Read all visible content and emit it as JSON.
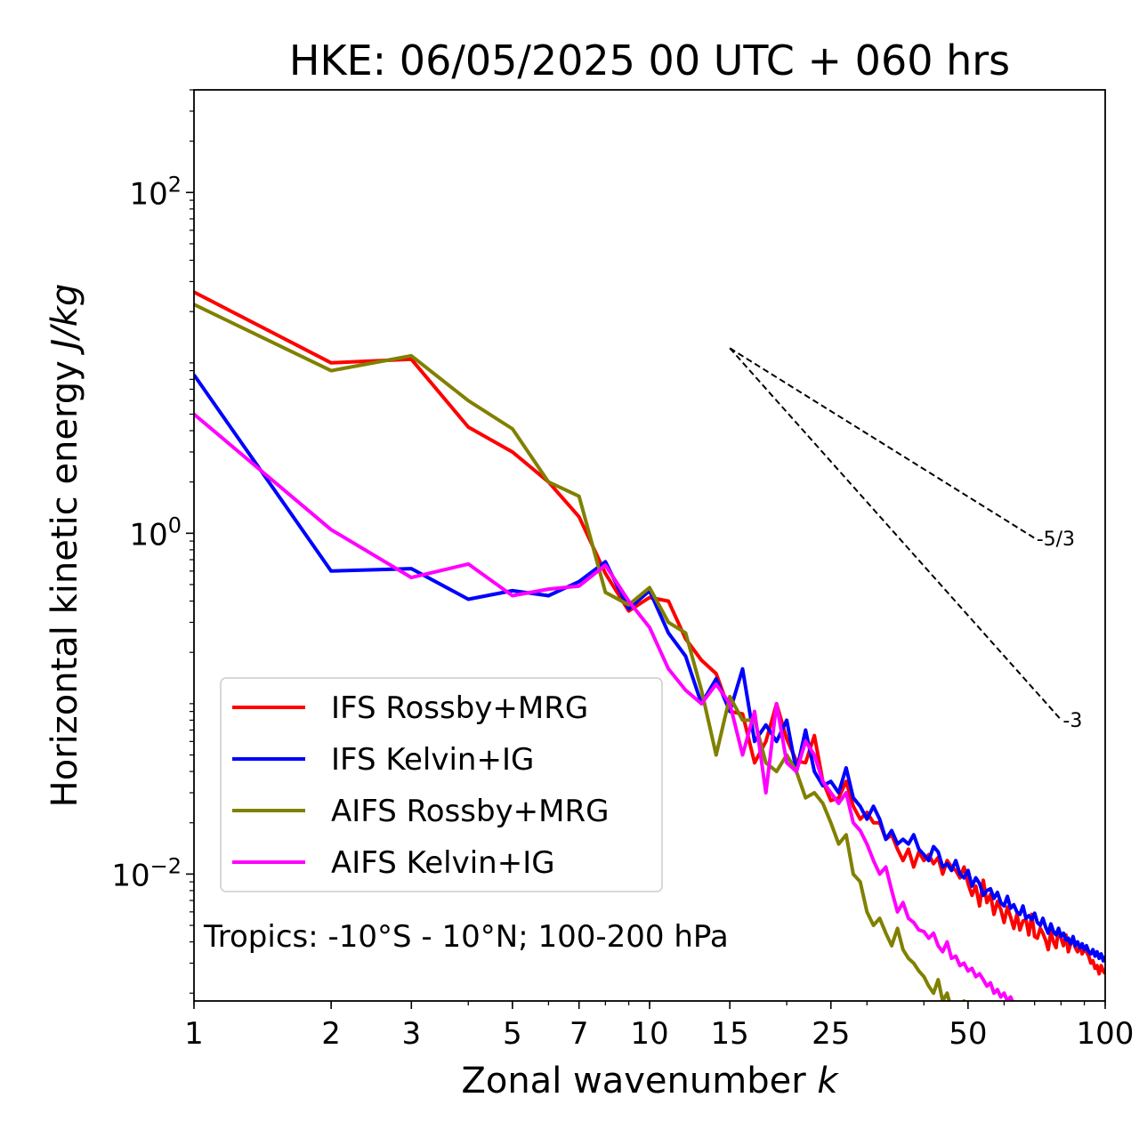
{
  "chart_data": {
    "type": "line",
    "title": "HKE: 06/05/2025 00 UTC + 060 hrs",
    "xlabel": "Zonal wavenumber",
    "xlabel_symbol": "k",
    "ylabel": "Horizontal kinetic energy",
    "ylabel_unit": "J/kg",
    "xscale": "log",
    "yscale": "log",
    "xlim": [
      1,
      100
    ],
    "ylim": [
      0.0018,
      400
    ],
    "xticks": [
      1,
      2,
      3,
      5,
      7,
      10,
      15,
      25,
      50,
      100
    ],
    "xtick_labels": [
      "1",
      "2",
      "3",
      "5",
      "7",
      "10",
      "15",
      "25",
      "50",
      "100"
    ],
    "yticks": [
      {
        "value": 100,
        "base": "10",
        "exp": "2"
      },
      {
        "value": 1,
        "base": "10",
        "exp": "0"
      },
      {
        "value": 0.01,
        "base": "10",
        "exp": "−2"
      }
    ],
    "annotation": "Tropics: -10°S - 10°N; 100-200 hPa",
    "legend_position": "lower-left",
    "reference_lines": [
      {
        "label": "-5/3",
        "slope": -1.6667,
        "x": [
          15,
          70
        ],
        "y_start": 12.2
      },
      {
        "label": "-3",
        "slope": -3,
        "x": [
          15,
          80
        ],
        "y_start": 12.2
      }
    ],
    "series": [
      {
        "name": "IFS Rossby+MRG",
        "color": "#ff0000",
        "x": [
          1,
          2,
          3,
          4,
          5,
          6,
          7,
          8,
          9,
          10,
          11,
          12,
          13,
          14,
          15,
          16,
          17,
          18,
          19,
          20,
          21,
          22,
          23,
          24,
          25,
          26,
          27,
          28,
          29,
          30,
          31,
          32,
          33,
          34,
          35,
          36,
          37,
          38,
          39,
          40,
          41,
          42,
          43,
          44,
          45,
          46,
          47,
          48,
          49,
          50,
          51,
          52,
          53,
          54,
          55,
          56,
          57,
          58,
          59,
          60,
          61,
          62,
          63,
          64,
          65,
          66,
          67,
          68,
          69,
          70,
          71,
          72,
          73,
          74,
          75,
          76,
          77,
          78,
          79,
          80,
          81,
          82,
          83,
          84,
          85,
          86,
          87,
          88,
          89,
          90,
          91,
          92,
          93,
          94,
          95,
          96,
          97,
          98,
          99,
          100
        ],
        "y": [
          26,
          10,
          10.5,
          4.2,
          3,
          2,
          1.25,
          0.58,
          0.35,
          0.42,
          0.4,
          0.24,
          0.18,
          0.15,
          0.09,
          0.087,
          0.045,
          0.06,
          0.1,
          0.062,
          0.046,
          0.045,
          0.065,
          0.035,
          0.027,
          0.028,
          0.035,
          0.025,
          0.021,
          0.023,
          0.02,
          0.02,
          0.016,
          0.017,
          0.014,
          0.012,
          0.014,
          0.011,
          0.0135,
          0.012,
          0.013,
          0.0115,
          0.0125,
          0.01,
          0.012,
          0.011,
          0.0105,
          0.0095,
          0.011,
          0.0088,
          0.0075,
          0.0085,
          0.0065,
          0.0092,
          0.0068,
          0.0076,
          0.0058,
          0.0069,
          0.0062,
          0.0052,
          0.0064,
          0.0056,
          0.0048,
          0.0058,
          0.0047,
          0.0053,
          0.0054,
          0.0044,
          0.0058,
          0.0043,
          0.0042,
          0.0048,
          0.0045,
          0.0041,
          0.0036,
          0.0046,
          0.004,
          0.0037,
          0.0048,
          0.0042,
          0.0038,
          0.0044,
          0.0035,
          0.0039,
          0.0041,
          0.0037,
          0.0035,
          0.0038,
          0.0034,
          0.0036,
          0.0035,
          0.0033,
          0.003,
          0.0031,
          0.0028,
          0.0029,
          0.0026,
          0.0029,
          0.0027,
          0.0026
        ]
      },
      {
        "name": "IFS Kelvin+IG",
        "color": "#0000ff",
        "x": [
          1,
          2,
          3,
          4,
          5,
          6,
          7,
          8,
          9,
          10,
          11,
          12,
          13,
          14,
          15,
          16,
          17,
          18,
          19,
          20,
          21,
          22,
          23,
          24,
          25,
          26,
          27,
          28,
          29,
          30,
          31,
          32,
          33,
          34,
          35,
          36,
          37,
          38,
          39,
          40,
          41,
          42,
          43,
          44,
          45,
          46,
          47,
          48,
          49,
          50,
          51,
          52,
          53,
          54,
          55,
          56,
          57,
          58,
          59,
          60,
          61,
          62,
          63,
          64,
          65,
          66,
          67,
          68,
          69,
          70,
          71,
          72,
          73,
          74,
          75,
          76,
          77,
          78,
          79,
          80,
          81,
          82,
          83,
          84,
          85,
          86,
          87,
          88,
          89,
          90,
          91,
          92,
          93,
          94,
          95,
          96,
          97,
          98,
          99,
          100
        ],
        "y": [
          8.5,
          0.6,
          0.62,
          0.41,
          0.46,
          0.43,
          0.52,
          0.68,
          0.36,
          0.46,
          0.26,
          0.19,
          0.1,
          0.14,
          0.09,
          0.16,
          0.06,
          0.075,
          0.06,
          0.08,
          0.04,
          0.07,
          0.04,
          0.033,
          0.035,
          0.03,
          0.042,
          0.028,
          0.025,
          0.021,
          0.025,
          0.021,
          0.016,
          0.018,
          0.015,
          0.016,
          0.015,
          0.017,
          0.014,
          0.013,
          0.012,
          0.0145,
          0.0135,
          0.011,
          0.0115,
          0.0105,
          0.012,
          0.01,
          0.0095,
          0.0105,
          0.0085,
          0.0095,
          0.0088,
          0.0075,
          0.008,
          0.0082,
          0.0072,
          0.0078,
          0.0068,
          0.0065,
          0.0074,
          0.0063,
          0.0066,
          0.006,
          0.0058,
          0.0065,
          0.0055,
          0.0057,
          0.0054,
          0.0059,
          0.0052,
          0.005,
          0.0055,
          0.0049,
          0.0045,
          0.0051,
          0.0046,
          0.0044,
          0.0048,
          0.0043,
          0.0045,
          0.0041,
          0.0042,
          0.0039,
          0.0043,
          0.0038,
          0.004,
          0.0037,
          0.0039,
          0.0036,
          0.0038,
          0.0035,
          0.0034,
          0.0036,
          0.0033,
          0.0035,
          0.0032,
          0.0034,
          0.0031,
          0.0033
        ]
      },
      {
        "name": "AIFS Rossby+MRG",
        "color": "#808000",
        "x": [
          1,
          2,
          3,
          4,
          5,
          6,
          7,
          8,
          9,
          10,
          11,
          12,
          13,
          14,
          15,
          16,
          17,
          18,
          19,
          20,
          21,
          22,
          23,
          24,
          25,
          26,
          27,
          28,
          29,
          30,
          31,
          32,
          33,
          34,
          35,
          36,
          37,
          38,
          39,
          40,
          41,
          42,
          43,
          44,
          45,
          46,
          47,
          48,
          49,
          50,
          51,
          52,
          53,
          54,
          55
        ],
        "y": [
          22,
          9,
          11,
          6,
          4.1,
          2,
          1.65,
          0.45,
          0.38,
          0.48,
          0.3,
          0.26,
          0.12,
          0.05,
          0.11,
          0.08,
          0.08,
          0.045,
          0.04,
          0.05,
          0.04,
          0.028,
          0.03,
          0.026,
          0.02,
          0.015,
          0.017,
          0.01,
          0.009,
          0.006,
          0.005,
          0.0055,
          0.0045,
          0.0038,
          0.0048,
          0.0036,
          0.0032,
          0.003,
          0.0027,
          0.0025,
          0.0022,
          0.002,
          0.0024,
          0.0018,
          0.002,
          0.0016,
          0.0017,
          0.0015,
          0.0018,
          0.0016,
          0.0014,
          0.0015,
          0.0013,
          0.0015,
          0.0012
        ]
      },
      {
        "name": "AIFS Kelvin+IG",
        "color": "#ff00ff",
        "x": [
          1,
          2,
          3,
          4,
          5,
          6,
          7,
          8,
          9,
          10,
          11,
          12,
          13,
          14,
          15,
          16,
          17,
          18,
          19,
          20,
          21,
          22,
          23,
          24,
          25,
          26,
          27,
          28,
          29,
          30,
          31,
          32,
          33,
          34,
          35,
          36,
          37,
          38,
          39,
          40,
          41,
          42,
          43,
          44,
          45,
          46,
          47,
          48,
          49,
          50,
          51,
          52,
          53,
          54,
          55,
          56,
          57,
          58,
          59,
          60,
          61,
          62,
          63,
          64
        ],
        "y": [
          5,
          1.05,
          0.55,
          0.66,
          0.43,
          0.47,
          0.49,
          0.65,
          0.4,
          0.28,
          0.16,
          0.12,
          0.1,
          0.13,
          0.1,
          0.05,
          0.09,
          0.03,
          0.1,
          0.045,
          0.04,
          0.06,
          0.05,
          0.035,
          0.03,
          0.026,
          0.03,
          0.02,
          0.018,
          0.015,
          0.012,
          0.01,
          0.011,
          0.008,
          0.006,
          0.0068,
          0.0055,
          0.0052,
          0.0047,
          0.0046,
          0.0042,
          0.0045,
          0.0038,
          0.0035,
          0.004,
          0.0032,
          0.0033,
          0.0029,
          0.003,
          0.0027,
          0.0028,
          0.0025,
          0.0026,
          0.0024,
          0.0022,
          0.0023,
          0.002,
          0.0021,
          0.0019,
          0.002,
          0.0018,
          0.0019,
          0.0017,
          0.0018
        ]
      }
    ]
  }
}
